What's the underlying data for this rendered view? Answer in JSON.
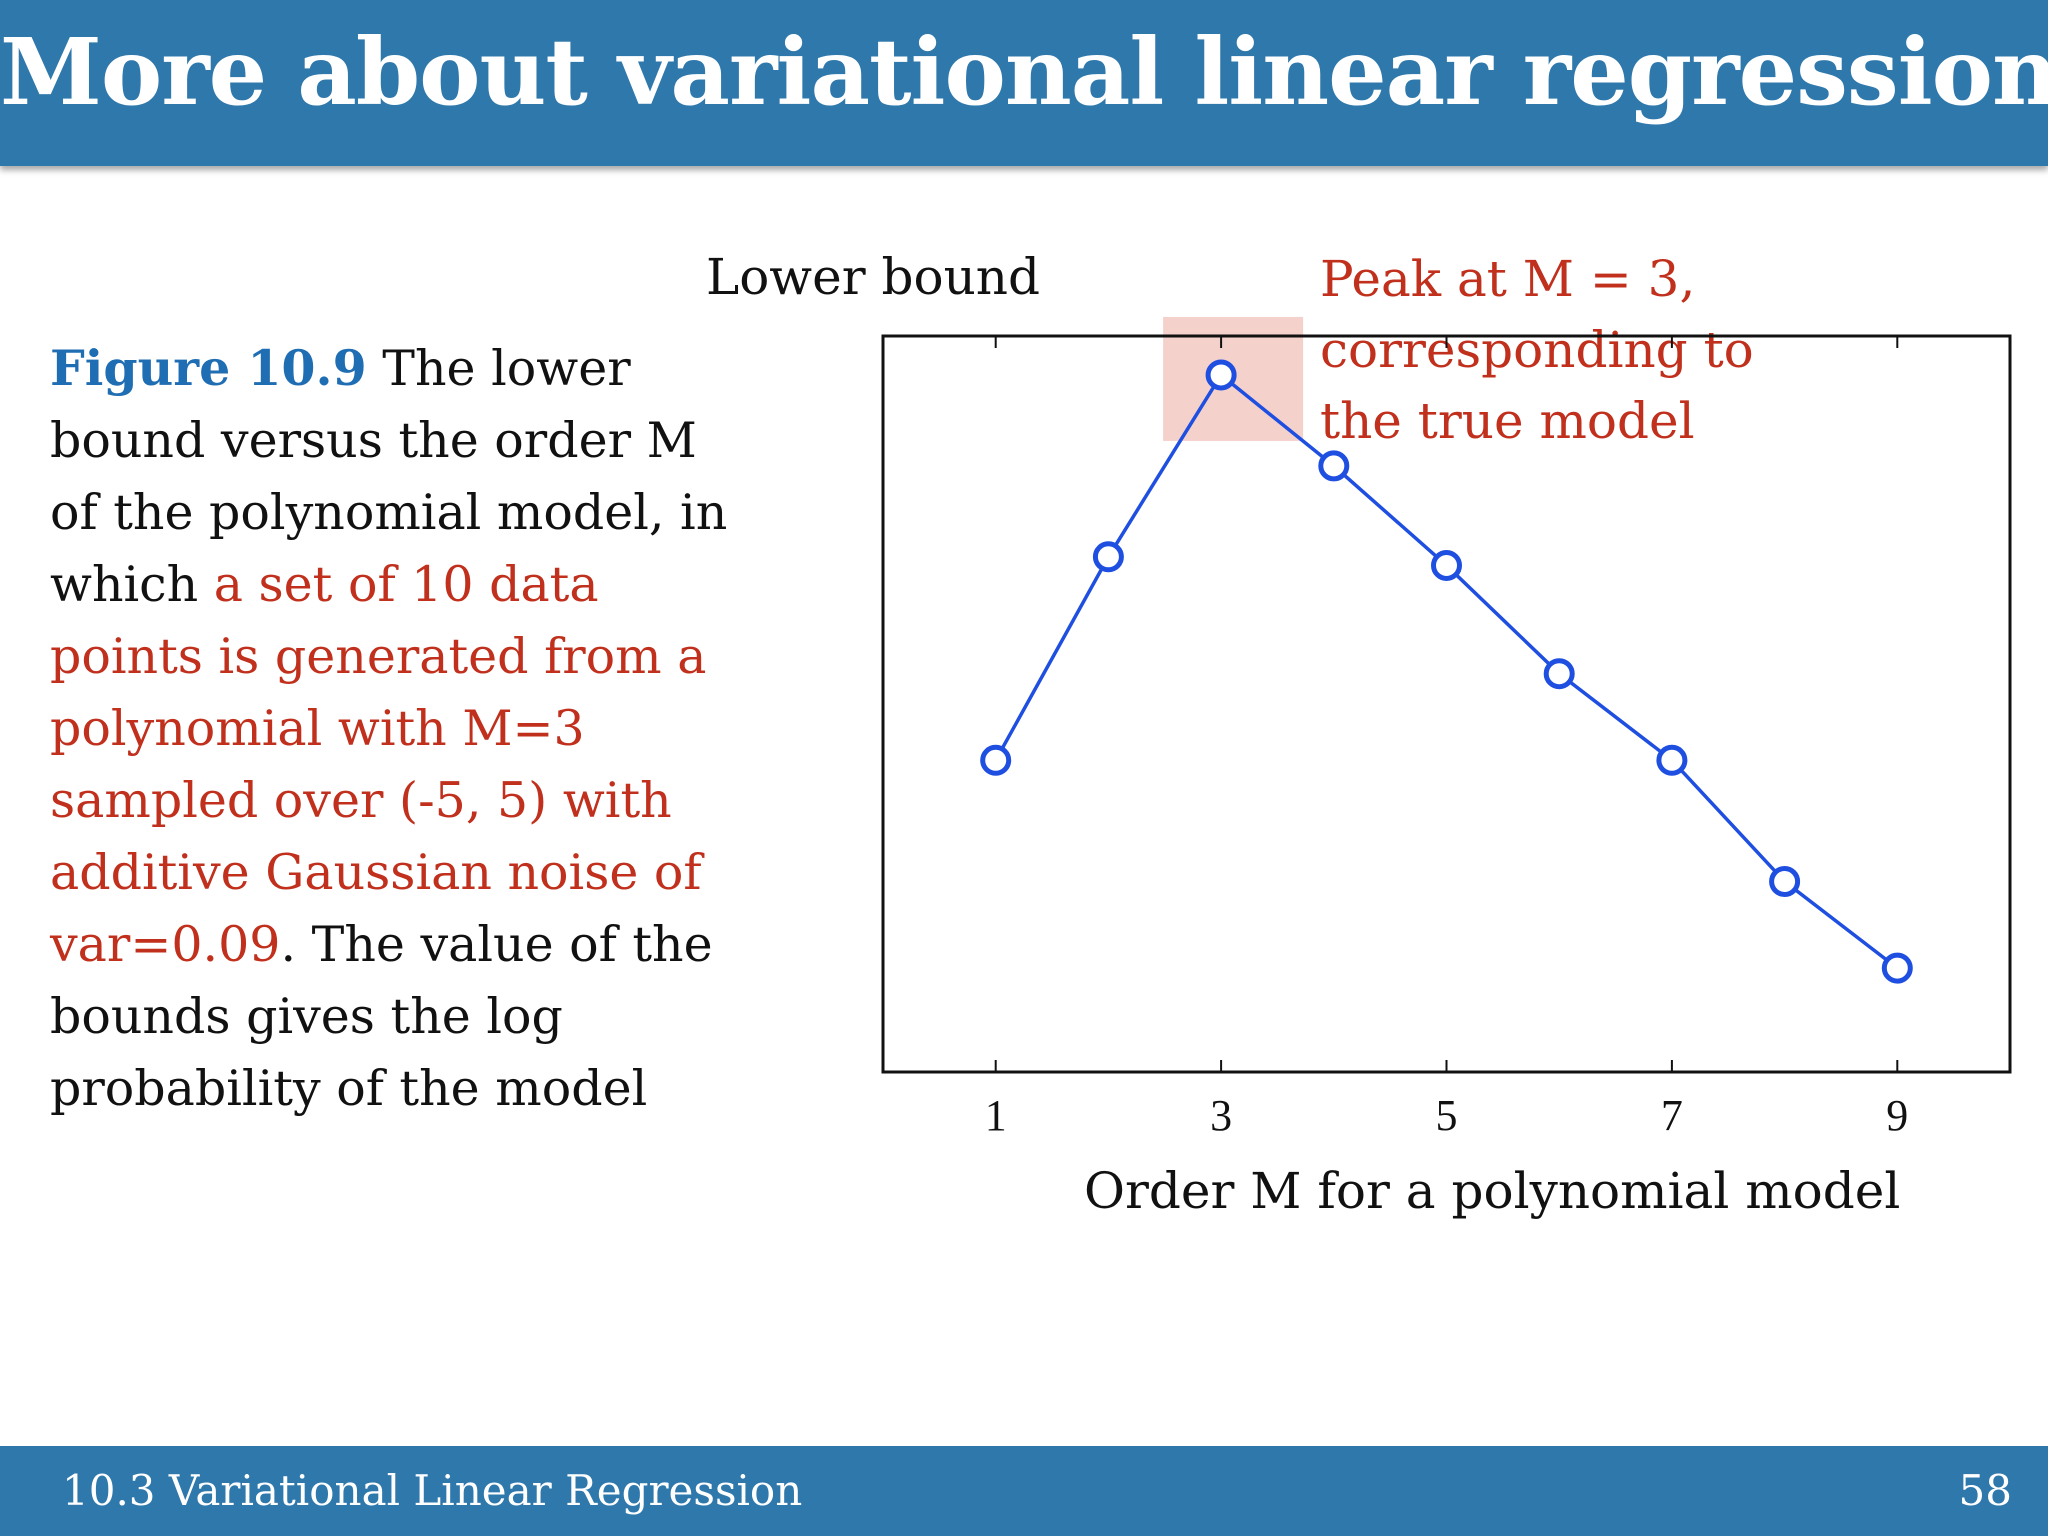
{
  "slide": {
    "title": "More about variational linear regression",
    "page_number": "58",
    "section": "10.3 Variational Linear Regression"
  },
  "caption": {
    "figure_label": "Figure 10.9",
    "text_black_1": " The lower bound versus the order M of the polynomial model, in which ",
    "text_red": "a set of 10 data points is generated from a polynomial with M=3 sampled over (-5, 5) with additive Gaussian noise of var=0.09",
    "text_black_2": ". The value of the bounds gives the log probability of the model"
  },
  "annotation": {
    "line1": "Peak at M = 3,",
    "line2": "corresponding to",
    "line3": "the true model"
  },
  "colors": {
    "header": "#2f78ac",
    "series": "#1f4fe0",
    "highlight": "#f0b8b0",
    "caption_accent": "#c0301c",
    "figure_label": "#1f6db3"
  },
  "chart_data": {
    "type": "line",
    "ylabel": "Lower bound",
    "xlabel": "Order M for a polynomial model",
    "x": [
      1,
      2,
      3,
      4,
      5,
      6,
      7,
      8,
      9
    ],
    "values": [
      3.6,
      5.95,
      8.05,
      7.0,
      5.85,
      4.6,
      3.6,
      2.2,
      1.2
    ],
    "xlim": [
      0,
      10
    ],
    "ylim": [
      0,
      8.5
    ],
    "xticks": [
      1,
      3,
      5,
      7,
      9
    ],
    "yticks_labeled": false,
    "marker": "open-circle",
    "highlight_x": 3
  }
}
